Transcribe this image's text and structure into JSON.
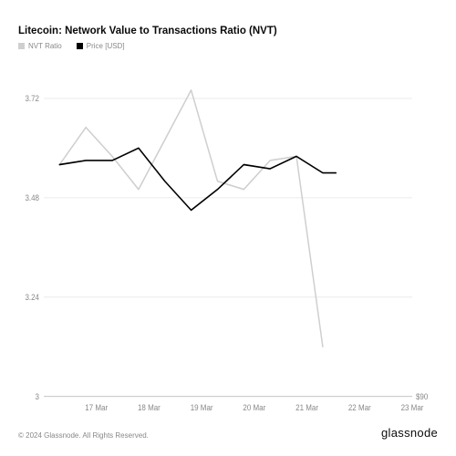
{
  "title": "Litecoin: Network Value to Transactions Ratio (NVT)",
  "copyright": "© 2024 Glassnode. All Rights Reserved.",
  "brand": "glassnode",
  "legend": [
    {
      "label": "NVT Ratio",
      "color": "#cfcfcf"
    },
    {
      "label": "Price [USD]",
      "color": "#000000"
    }
  ],
  "chart": {
    "type": "line",
    "background_color": "#ffffff",
    "grid_color": "#eeeeee",
    "x_axis_line_color": "#cccccc",
    "axis_label_color": "#888888",
    "axis_label_fontsize": 8,
    "x": {
      "categories": [
        "17 Mar",
        "18 Mar",
        "19 Mar",
        "20 Mar",
        "21 Mar",
        "22 Mar",
        "23 Mar"
      ],
      "domain_min": 0,
      "domain_max": 7
    },
    "y_left": {
      "ticks": [
        3,
        3.24,
        3.48,
        3.72
      ],
      "min": 3,
      "max": 3.8
    },
    "y_right": {
      "ticks": [
        "$90"
      ],
      "tick_positions": [
        3
      ]
    },
    "series": [
      {
        "name": "NVT Ratio",
        "color": "#cfcfcf",
        "line_width": 1.5,
        "points": [
          {
            "x": 0.3,
            "y": 3.56
          },
          {
            "x": 0.8,
            "y": 3.65
          },
          {
            "x": 1.3,
            "y": 3.58
          },
          {
            "x": 1.8,
            "y": 3.5
          },
          {
            "x": 2.3,
            "y": 3.62
          },
          {
            "x": 2.8,
            "y": 3.74
          },
          {
            "x": 3.3,
            "y": 3.52
          },
          {
            "x": 3.8,
            "y": 3.5
          },
          {
            "x": 4.3,
            "y": 3.57
          },
          {
            "x": 4.8,
            "y": 3.58
          },
          {
            "x": 5.3,
            "y": 3.12
          }
        ]
      },
      {
        "name": "Price [USD]",
        "color": "#000000",
        "line_width": 1.5,
        "points": [
          {
            "x": 0.3,
            "y": 3.56
          },
          {
            "x": 0.8,
            "y": 3.57
          },
          {
            "x": 1.3,
            "y": 3.57
          },
          {
            "x": 1.8,
            "y": 3.6
          },
          {
            "x": 2.3,
            "y": 3.52
          },
          {
            "x": 2.8,
            "y": 3.45
          },
          {
            "x": 3.3,
            "y": 3.5
          },
          {
            "x": 3.8,
            "y": 3.56
          },
          {
            "x": 4.3,
            "y": 3.55
          },
          {
            "x": 4.8,
            "y": 3.58
          },
          {
            "x": 5.3,
            "y": 3.54
          },
          {
            "x": 5.55,
            "y": 3.54
          }
        ]
      }
    ]
  }
}
